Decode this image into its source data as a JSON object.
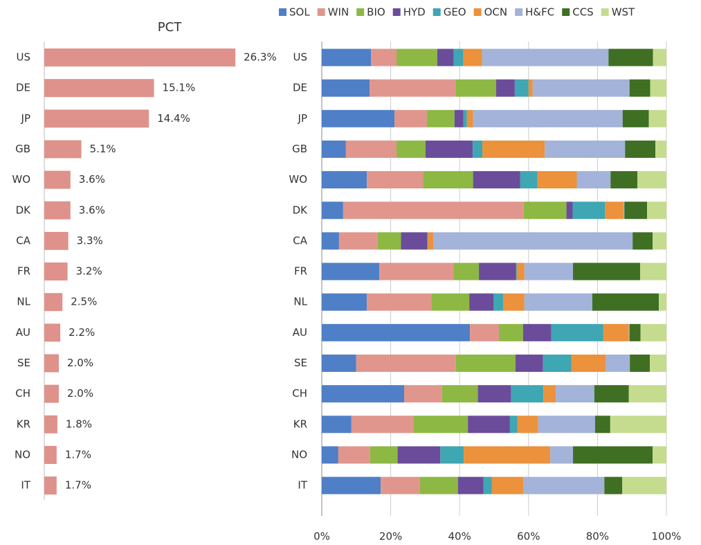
{
  "chart_data": [
    {
      "type": "bar",
      "title": "PCT",
      "categories": [
        "US",
        "DE",
        "JP",
        "GB",
        "WO",
        "DK",
        "CA",
        "FR",
        "NL",
        "AU",
        "SE",
        "CH",
        "KR",
        "NO",
        "IT"
      ],
      "values": [
        26.3,
        15.1,
        14.4,
        5.1,
        3.6,
        3.6,
        3.3,
        3.2,
        2.5,
        2.2,
        2.0,
        2.0,
        1.8,
        1.7,
        1.7
      ],
      "value_labels": [
        "26.3%",
        "15.1%",
        "14.4%",
        "5.1%",
        "3.6%",
        "3.6%",
        "3.3%",
        "3.2%",
        "2.5%",
        "2.2%",
        "2.0%",
        "2.0%",
        "1.8%",
        "1.7%",
        "1.7%"
      ],
      "color": "#de928b"
    },
    {
      "type": "stacked_bar",
      "categories": [
        "US",
        "DE",
        "JP",
        "GB",
        "WO",
        "DK",
        "CA",
        "FR",
        "NL",
        "AU",
        "SE",
        "CH",
        "KR",
        "NO",
        "IT"
      ],
      "series": [
        {
          "name": "SOL",
          "color": "#4f7fc6",
          "values": [
            14.3,
            13.9,
            21.1,
            7.0,
            13.1,
            6.2,
            5.0,
            16.7,
            13.1,
            43.0,
            10.0,
            23.9,
            8.6,
            4.8,
            17.1
          ]
        },
        {
          "name": "WIN",
          "color": "#e0968d",
          "values": [
            7.4,
            24.9,
            9.4,
            14.7,
            16.3,
            52.4,
            11.2,
            21.5,
            18.7,
            8.4,
            28.9,
            11.0,
            18.1,
            9.2,
            11.4
          ]
        },
        {
          "name": "BIO",
          "color": "#8db843",
          "values": [
            11.8,
            11.8,
            8.0,
            8.4,
            14.5,
            12.4,
            6.8,
            7.4,
            11.0,
            7.0,
            17.3,
            10.4,
            15.7,
            8.0,
            11.0
          ]
        },
        {
          "name": "HYD",
          "color": "#6b4c9a",
          "values": [
            4.8,
            5.4,
            2.6,
            13.7,
            13.7,
            1.8,
            7.6,
            10.8,
            7.0,
            8.2,
            8.0,
            9.6,
            12.2,
            12.4,
            7.4
          ]
        },
        {
          "name": "GEO",
          "color": "#3fa6b3",
          "values": [
            2.8,
            4.0,
            1.0,
            2.8,
            5.0,
            9.4,
            0.2,
            0.2,
            2.8,
            15.1,
            8.2,
            9.4,
            2.2,
            6.8,
            2.4
          ]
        },
        {
          "name": "OCN",
          "color": "#ec913c",
          "values": [
            5.4,
            1.2,
            1.8,
            18.1,
            11.4,
            5.4,
            1.6,
            2.2,
            6.2,
            7.4,
            10.0,
            3.6,
            6.0,
            25.1,
            9.2
          ]
        },
        {
          "name": "H&FC",
          "color": "#a3b3d9",
          "values": [
            36.7,
            28.1,
            43.4,
            23.3,
            9.8,
            0.2,
            57.8,
            14.1,
            19.7,
            0.2,
            7.0,
            11.2,
            16.5,
            6.6,
            23.5
          ]
        },
        {
          "name": "CCS",
          "color": "#3f6f23",
          "values": [
            12.9,
            6.0,
            7.6,
            8.8,
            7.8,
            6.6,
            5.8,
            19.5,
            19.3,
            3.2,
            5.8,
            10.0,
            4.4,
            23.1,
            5.2
          ]
        },
        {
          "name": "WST",
          "color": "#c5dc8e",
          "values": [
            3.9,
            4.7,
            5.1,
            3.2,
            8.4,
            5.6,
            4.0,
            7.6,
            2.2,
            7.5,
            4.8,
            10.9,
            16.3,
            4.0,
            12.8
          ]
        }
      ],
      "xlim": [
        0,
        100
      ],
      "xticks": [
        {
          "value": 0,
          "label": "0%"
        },
        {
          "value": 20,
          "label": "20%"
        },
        {
          "value": 40,
          "label": "40%"
        },
        {
          "value": 60,
          "label": "60%"
        },
        {
          "value": 80,
          "label": "80%"
        },
        {
          "value": 100,
          "label": "100%"
        }
      ],
      "grid": true
    }
  ]
}
